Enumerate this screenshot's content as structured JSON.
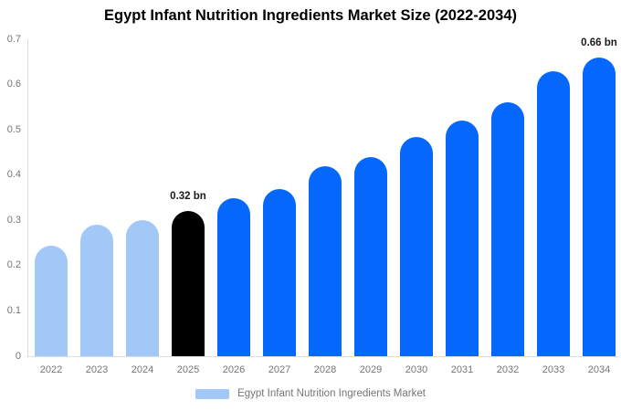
{
  "title": "Egypt Infant Nutrition Ingredients Market Size (2022-2034)",
  "chart_data": {
    "type": "bar",
    "title": "Egypt Infant Nutrition Ingredients Market Size (2022-2034)",
    "categories": [
      "2022",
      "2023",
      "2024",
      "2025",
      "2026",
      "2027",
      "2028",
      "2029",
      "2030",
      "2031",
      "2032",
      "2033",
      "2034"
    ],
    "values": [
      0.245,
      0.29,
      0.3,
      0.32,
      0.35,
      0.37,
      0.42,
      0.44,
      0.485,
      0.52,
      0.56,
      0.63,
      0.66
    ],
    "unit": "bn",
    "bar_color_keys": [
      "light",
      "light",
      "light",
      "highlight",
      "primary",
      "primary",
      "primary",
      "primary",
      "primary",
      "primary",
      "primary",
      "primary",
      "primary"
    ],
    "palette": {
      "light": "#a2c8f7",
      "highlight": "#000000",
      "primary": "#0567fb"
    },
    "annotations": [
      {
        "category": "2025",
        "text": "0.32 bn"
      },
      {
        "category": "2034",
        "text": "0.66 bn"
      }
    ],
    "xlabel": "",
    "ylabel": "",
    "ylim": [
      0,
      0.7
    ],
    "yticks": [
      "0",
      "0.1",
      "0.2",
      "0.3",
      "0.4",
      "0.5",
      "0.6",
      "0.7"
    ],
    "grid": false,
    "legend": {
      "position": "bottom",
      "items": [
        {
          "label": "Egypt Infant Nutrition Ingredients Market",
          "color": "#a2c8f7"
        }
      ]
    }
  }
}
